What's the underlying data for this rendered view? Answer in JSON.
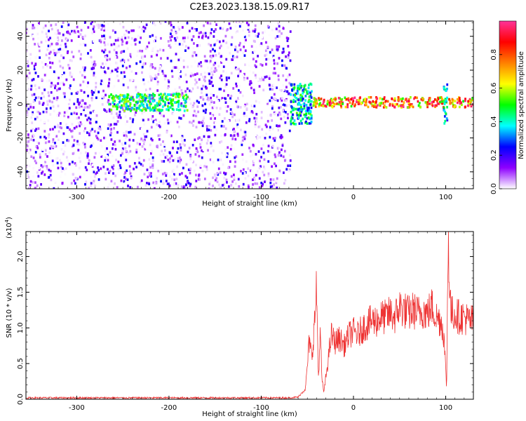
{
  "title": "C2E3.2023.138.15.09.R17",
  "chart_data": [
    {
      "type": "heatmap",
      "name": "spectrogram",
      "xlabel": "Height of straight line (km)",
      "ylabel": "Frequency (Hz)",
      "xlim": [
        -355,
        130
      ],
      "ylim": [
        -50,
        49
      ],
      "xticks": [
        -300,
        -200,
        -100,
        0,
        100
      ],
      "xtick_labels": [
        "-300",
        "-200",
        "-100",
        "0",
        "100"
      ],
      "yticks": [
        -40,
        -20,
        0,
        20,
        40
      ],
      "ytick_labels": [
        "-40",
        "-20",
        "0",
        "20",
        "40"
      ],
      "regions": [
        {
          "x_range": [
            -355,
            -68
          ],
          "y_range": [
            -50,
            49
          ],
          "amplitude_range": [
            0.0,
            0.25
          ],
          "pattern": "broadband scattered noise"
        },
        {
          "x_range": [
            -265,
            -180
          ],
          "y_range": [
            -4,
            6
          ],
          "amplitude_range": [
            0.3,
            0.6
          ],
          "pattern": "band near 0-5 Hz"
        },
        {
          "x_range": [
            -68,
            -45
          ],
          "y_range": [
            -12,
            12
          ],
          "amplitude_range": [
            0.2,
            0.55
          ],
          "pattern": "transition burst"
        },
        {
          "x_range": [
            -45,
            130
          ],
          "y_range": [
            -2,
            4
          ],
          "amplitude_range": [
            0.5,
            1.0
          ],
          "pattern": "narrow carrier line"
        },
        {
          "x_range": [
            98,
            102
          ],
          "y_range": [
            -12,
            12
          ],
          "amplitude_range": [
            0.2,
            0.5
          ],
          "pattern": "spike"
        }
      ],
      "colorbar": {
        "label": "Normalized spectral amplitude",
        "range": [
          0.0,
          1.0
        ],
        "ticks": [
          "0.0",
          "0.2",
          "0.4",
          "0.6",
          "0.8"
        ],
        "tick_values": [
          0.0,
          0.2,
          0.4,
          0.6,
          0.8
        ],
        "colors": [
          "#ffffff",
          "#8e00ff",
          "#0000ff",
          "#00ffff",
          "#00ff00",
          "#ffff00",
          "#ff8000",
          "#ff0000",
          "#ff3399"
        ]
      }
    },
    {
      "type": "line",
      "name": "snr",
      "xlabel": "Height of straight line (km)",
      "ylabel": "SNR (10 * v/v)",
      "yscale_label": "(x10",
      "yscale_exp": "4",
      "yscale_close": ")",
      "xlim": [
        -355,
        130
      ],
      "ylim": [
        0,
        2.35
      ],
      "xticks": [
        -300,
        -200,
        -100,
        0,
        100
      ],
      "xtick_labels": [
        "-300",
        "-200",
        "-100",
        "0",
        "100"
      ],
      "yticks": [
        0.0,
        0.5,
        1.0,
        1.5,
        2.0
      ],
      "ytick_labels": [
        "0.0",
        "0.5",
        "1.0",
        "1.5",
        "2.0"
      ],
      "color": "#ee3333",
      "series": [
        {
          "x": [
            -355,
            -300,
            -250,
            -200,
            -150,
            -100,
            -70,
            -60,
            -52,
            -48,
            -45,
            -42,
            -40,
            -38,
            -36,
            -34,
            -32,
            -30,
            -27,
            -24,
            -20,
            -15,
            -10,
            -5,
            0,
            5,
            10,
            15,
            20,
            25,
            30,
            35,
            40,
            45,
            50,
            55,
            60,
            65,
            70,
            75,
            80,
            85,
            90,
            95,
            98,
            100,
            101,
            102,
            103,
            104,
            106,
            110,
            115,
            120,
            125,
            130
          ],
          "y": [
            0.02,
            0.02,
            0.02,
            0.02,
            0.02,
            0.02,
            0.02,
            0.03,
            0.15,
            0.8,
            0.6,
            1.1,
            1.55,
            0.3,
            0.9,
            0.25,
            0.1,
            0.3,
            0.6,
            0.9,
            0.8,
            0.85,
            0.75,
            0.9,
            0.95,
            0.9,
            1.0,
            1.05,
            1.1,
            1.1,
            1.15,
            1.15,
            1.2,
            1.15,
            1.3,
            1.25,
            1.2,
            1.25,
            1.2,
            1.25,
            1.2,
            1.3,
            1.15,
            1.1,
            0.9,
            0.4,
            0.15,
            1.5,
            2.35,
            1.6,
            1.2,
            1.2,
            1.15,
            1.15,
            1.1,
            1.1
          ]
        }
      ]
    }
  ]
}
